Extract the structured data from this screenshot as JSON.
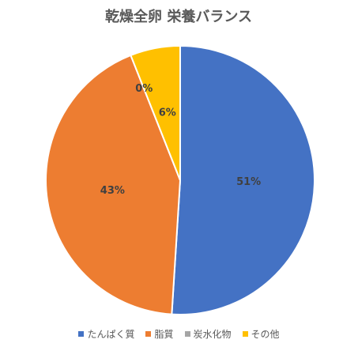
{
  "chart_data": {
    "type": "pie",
    "title": "乾燥全卵 栄養バランス",
    "categories": [
      "たんぱく質",
      "脂質",
      "炭水化物",
      "その他"
    ],
    "values": [
      51,
      43,
      0,
      6
    ],
    "value_labels": [
      "51%",
      "43%",
      "0%",
      "6%"
    ],
    "colors": [
      "#4472c4",
      "#ed7d31",
      "#a5a5a5",
      "#ffc000"
    ],
    "legend": "bottom"
  }
}
